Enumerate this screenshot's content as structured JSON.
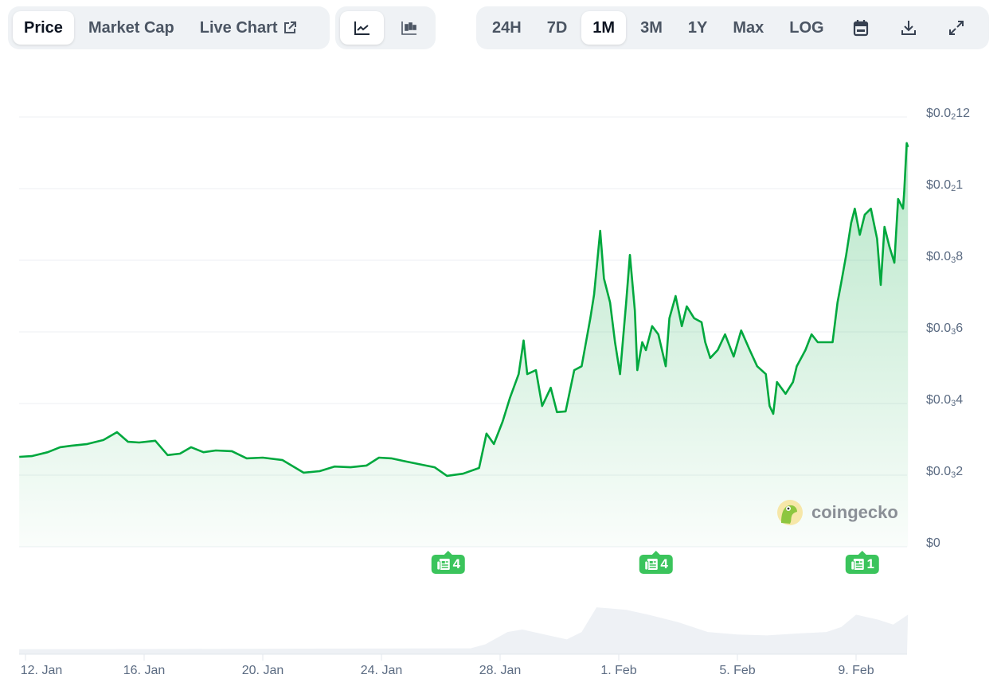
{
  "toolbar": {
    "view_tabs": [
      {
        "label": "Price",
        "active": true
      },
      {
        "label": "Market Cap",
        "active": false
      },
      {
        "label": "Live Chart",
        "active": false,
        "icon": "external-link-icon"
      }
    ],
    "chart_types": [
      {
        "icon": "line-chart-icon",
        "active": true
      },
      {
        "icon": "candlestick-icon",
        "active": false
      }
    ],
    "ranges": [
      {
        "label": "24H",
        "active": false
      },
      {
        "label": "7D",
        "active": false
      },
      {
        "label": "1M",
        "active": true
      },
      {
        "label": "3M",
        "active": false
      },
      {
        "label": "1Y",
        "active": false
      },
      {
        "label": "Max",
        "active": false
      },
      {
        "label": "LOG",
        "active": false
      }
    ],
    "actions": [
      "calendar-icon",
      "download-icon",
      "expand-icon"
    ]
  },
  "watermark": {
    "text": "coingecko"
  },
  "news_badges": [
    {
      "date": "Jan 26 06:00",
      "count": "4"
    },
    {
      "date": "Feb 02 06:00",
      "count": "4"
    },
    {
      "date": "Feb 09 05:00",
      "count": "1"
    }
  ],
  "chart_data": {
    "type": "area",
    "line_color": "#00a83e",
    "fill_color": "#00a83e",
    "volume_color": "#eef1f5",
    "grid": true,
    "ylim": [
      0,
      0.0012
    ],
    "y_ticks": [
      {
        "value": 0.0012,
        "base": "$0.0",
        "sub": "2",
        "tail": "12"
      },
      {
        "value": 0.001,
        "base": "$0.0",
        "sub": "2",
        "tail": "1"
      },
      {
        "value": 0.0008,
        "base": "$0.0",
        "sub": "3",
        "tail": "8"
      },
      {
        "value": 0.0006,
        "base": "$0.0",
        "sub": "3",
        "tail": "6"
      },
      {
        "value": 0.0004,
        "base": "$0.0",
        "sub": "3",
        "tail": "4"
      },
      {
        "value": 0.0002,
        "base": "$0.0",
        "sub": "3",
        "tail": "2"
      },
      {
        "value": 0,
        "base": "$0",
        "sub": "",
        "tail": ""
      }
    ],
    "x_ticks": [
      {
        "date": "Jan 12 00:00",
        "label": "12. Jan"
      },
      {
        "date": "Jan 16 00:00",
        "label": "16. Jan"
      },
      {
        "date": "Jan 20 00:00",
        "label": "20. Jan"
      },
      {
        "date": "Jan 24 00:00",
        "label": "24. Jan"
      },
      {
        "date": "Jan 28 00:00",
        "label": "28. Jan"
      },
      {
        "date": "Feb 01 00:00",
        "label": "1. Feb"
      },
      {
        "date": "Feb 05 00:00",
        "label": "5. Feb"
      },
      {
        "date": "Feb 09 00:00",
        "label": "9. Feb"
      }
    ],
    "price": [
      [
        "Jan 11 19:00",
        0.000251
      ],
      [
        "Jan 12 05:00",
        0.000253
      ],
      [
        "Jan 12 18:00",
        0.000264
      ],
      [
        "Jan 13 04:00",
        0.000278
      ],
      [
        "Jan 13 13:00",
        0.000282
      ],
      [
        "Jan 14 02:00",
        0.000287
      ],
      [
        "Jan 14 15:00",
        0.000298
      ],
      [
        "Jan 15 02:00",
        0.00032
      ],
      [
        "Jan 15 11:00",
        0.000293
      ],
      [
        "Jan 15 20:00",
        0.000291
      ],
      [
        "Jan 16 09:00",
        0.000296
      ],
      [
        "Jan 16 19:00",
        0.000256
      ],
      [
        "Jan 17 05:00",
        0.00026
      ],
      [
        "Jan 17 14:00",
        0.000278
      ],
      [
        "Jan 18 00:00",
        0.000264
      ],
      [
        "Jan 18 10:00",
        0.000269
      ],
      [
        "Jan 18 23:00",
        0.000267
      ],
      [
        "Jan 19 11:00",
        0.000247
      ],
      [
        "Jan 20 00:00",
        0.000249
      ],
      [
        "Jan 20 16:00",
        0.000242
      ],
      [
        "Jan 21 09:00",
        0.000207
      ],
      [
        "Jan 21 22:00",
        0.000211
      ],
      [
        "Jan 22 10:00",
        0.000224
      ],
      [
        "Jan 22 23:00",
        0.000222
      ],
      [
        "Jan 23 12:00",
        0.000227
      ],
      [
        "Jan 23 22:00",
        0.000249
      ],
      [
        "Jan 24 08:00",
        0.000247
      ],
      [
        "Jan 24 20:00",
        0.000238
      ],
      [
        "Jan 25 09:00",
        0.000229
      ],
      [
        "Jan 25 19:00",
        0.000222
      ],
      [
        "Jan 26 05:00",
        0.000198
      ],
      [
        "Jan 26 18:00",
        0.000204
      ],
      [
        "Jan 27 07:00",
        0.00022
      ],
      [
        "Jan 27 13:00",
        0.000316
      ],
      [
        "Jan 27 19:00",
        0.000287
      ],
      [
        "Jan 28 02:00",
        0.000349
      ],
      [
        "Jan 28 08:00",
        0.000416
      ],
      [
        "Jan 28 15:00",
        0.000482
      ],
      [
        "Jan 28 19:00",
        0.000576
      ],
      [
        "Jan 28 22:00",
        0.000482
      ],
      [
        "Jan 29 05:00",
        0.000493
      ],
      [
        "Jan 29 10:00",
        0.000393
      ],
      [
        "Jan 29 17:00",
        0.000444
      ],
      [
        "Jan 29 22:00",
        0.000376
      ],
      [
        "Jan 30 05:00",
        0.000378
      ],
      [
        "Jan 30 12:00",
        0.000493
      ],
      [
        "Jan 30 18:00",
        0.000504
      ],
      [
        "Jan 31 01:00",
        0.000638
      ],
      [
        "Jan 31 04:00",
        0.000704
      ],
      [
        "Jan 31 09:00",
        0.000882
      ],
      [
        "Jan 31 12:00",
        0.000749
      ],
      [
        "Jan 31 17:00",
        0.000682
      ],
      [
        "Jan 31 21:00",
        0.000571
      ],
      [
        "Feb 01 01:00",
        0.000482
      ],
      [
        "Feb 01 06:00",
        0.000682
      ],
      [
        "Feb 01 09:00",
        0.000815
      ],
      [
        "Feb 01 13:00",
        0.00066
      ],
      [
        "Feb 01 15:00",
        0.000493
      ],
      [
        "Feb 01 19:00",
        0.000571
      ],
      [
        "Feb 01 22:00",
        0.000549
      ],
      [
        "Feb 02 03:00",
        0.000616
      ],
      [
        "Feb 02 08:00",
        0.000593
      ],
      [
        "Feb 02 14:00",
        0.000504
      ],
      [
        "Feb 02 17:00",
        0.000638
      ],
      [
        "Feb 02 22:00",
        0.0007
      ],
      [
        "Feb 03 03:00",
        0.000616
      ],
      [
        "Feb 03 07:00",
        0.000671
      ],
      [
        "Feb 03 13:00",
        0.000638
      ],
      [
        "Feb 03 19:00",
        0.000627
      ],
      [
        "Feb 03 22:00",
        0.000571
      ],
      [
        "Feb 04 02:00",
        0.000527
      ],
      [
        "Feb 04 08:00",
        0.000549
      ],
      [
        "Feb 04 14:00",
        0.000593
      ],
      [
        "Feb 04 21:00",
        0.000531
      ],
      [
        "Feb 05 03:00",
        0.000604
      ],
      [
        "Feb 05 10:00",
        0.000549
      ],
      [
        "Feb 05 16:00",
        0.000504
      ],
      [
        "Feb 05 23:00",
        0.000482
      ],
      [
        "Feb 06 02:00",
        0.000393
      ],
      [
        "Feb 06 05:00",
        0.000371
      ],
      [
        "Feb 06 08:00",
        0.00046
      ],
      [
        "Feb 06 15:00",
        0.000427
      ],
      [
        "Feb 06 21:00",
        0.00046
      ],
      [
        "Feb 07 00:00",
        0.000504
      ],
      [
        "Feb 07 07:00",
        0.000549
      ],
      [
        "Feb 07 12:00",
        0.000593
      ],
      [
        "Feb 07 17:00",
        0.000571
      ],
      [
        "Feb 07 23:00",
        0.000571
      ],
      [
        "Feb 08 05:00",
        0.000571
      ],
      [
        "Feb 08 09:00",
        0.000682
      ],
      [
        "Feb 08 12:00",
        0.000738
      ],
      [
        "Feb 08 16:00",
        0.000815
      ],
      [
        "Feb 08 20:00",
        0.000904
      ],
      [
        "Feb 08 23:00",
        0.000944
      ],
      [
        "Feb 09 03:00",
        0.000871
      ],
      [
        "Feb 09 07:00",
        0.000927
      ],
      [
        "Feb 09 12:00",
        0.000944
      ],
      [
        "Feb 09 17:00",
        0.00086
      ],
      [
        "Feb 09 20:00",
        0.000731
      ],
      [
        "Feb 09 23:00",
        0.000893
      ],
      [
        "Feb 10 03:00",
        0.000838
      ],
      [
        "Feb 10 07:00",
        0.000793
      ],
      [
        "Feb 10 10:00",
        0.000971
      ],
      [
        "Feb 10 14:00",
        0.000944
      ],
      [
        "Feb 10 15:00",
        0.000993
      ],
      [
        "Feb 10 17:00",
        0.001127
      ],
      [
        "Feb 10 18:00",
        0.001116
      ]
    ],
    "volume_relative": [
      [
        "Jan 11 19:00",
        0.1
      ],
      [
        "Jan 27 00:00",
        0.12
      ],
      [
        "Jan 27 12:00",
        0.2
      ],
      [
        "Jan 28 06:00",
        0.45
      ],
      [
        "Jan 28 18:00",
        0.5
      ],
      [
        "Jan 29 12:00",
        0.4
      ],
      [
        "Jan 30 06:00",
        0.3
      ],
      [
        "Jan 30 18:00",
        0.45
      ],
      [
        "Jan 31 06:00",
        0.95
      ],
      [
        "Feb 01 06:00",
        0.9
      ],
      [
        "Feb 02 00:00",
        0.8
      ],
      [
        "Feb 03 00:00",
        0.65
      ],
      [
        "Feb 04 00:00",
        0.45
      ],
      [
        "Feb 05 00:00",
        0.4
      ],
      [
        "Feb 06 00:00",
        0.38
      ],
      [
        "Feb 07 00:00",
        0.42
      ],
      [
        "Feb 08 00:00",
        0.45
      ],
      [
        "Feb 08 12:00",
        0.55
      ],
      [
        "Feb 09 00:00",
        0.8
      ],
      [
        "Feb 09 18:00",
        0.7
      ],
      [
        "Feb 10 06:00",
        0.6
      ],
      [
        "Feb 10 18:00",
        0.8
      ]
    ]
  }
}
